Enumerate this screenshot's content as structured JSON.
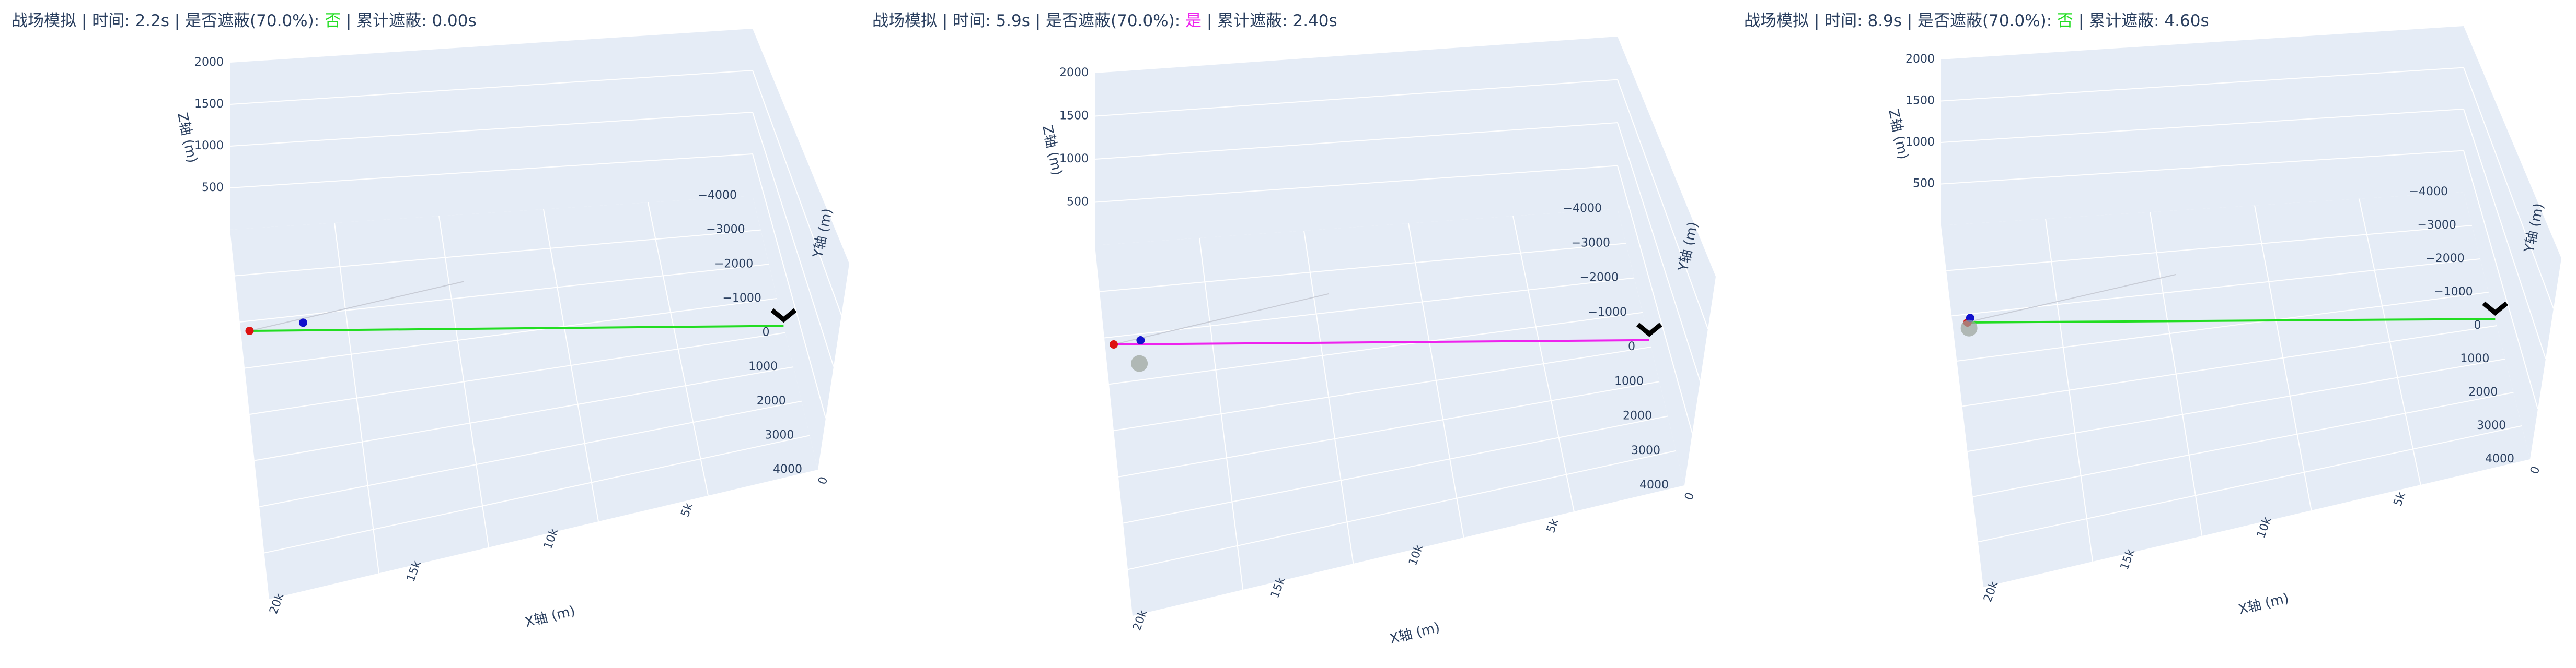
{
  "colors": {
    "pane": "#e5ecf6",
    "grid": "#ffffff",
    "text": "#2a3f5f",
    "not_hidden": "#22dd22",
    "hidden": "#ee22ee",
    "red_point": "#dd1111",
    "blue_point": "#1111cc",
    "cloud": "#9aa39a",
    "target": "#000000"
  },
  "chart_data": [
    {
      "type": "scatter3d",
      "title_prefix": "战场模拟 | 时间: 2.2s | 是否遮蔽(70.0%): ",
      "occluded_label": "否",
      "title_suffix": " | 累计遮蔽: 0.00s",
      "time_s": 2.2,
      "occluded": false,
      "cumulative_occlusion_s": 0.0,
      "axes": {
        "x": {
          "label": "X轴 (m)",
          "ticks": [
            "0",
            "5k",
            "10k",
            "15k",
            "20k"
          ]
        },
        "y": {
          "label": "Y轴 (m)",
          "ticks": [
            "−4000",
            "−3000",
            "−2000",
            "−1000",
            "0",
            "1000",
            "2000",
            "3000",
            "4000"
          ]
        },
        "z": {
          "label": "Z轴 (m)",
          "ticks": [
            "500",
            "1000",
            "1500",
            "2000"
          ]
        }
      },
      "series": [
        {
          "marker": "red",
          "x": 20000,
          "y": 0,
          "z": 1000
        },
        {
          "marker": "blue",
          "x": 18000,
          "y": 0,
          "z": 1000
        },
        {
          "marker": "target",
          "x": 0,
          "y": 200,
          "z": 0
        }
      ],
      "line_of_sight": "not_hidden"
    },
    {
      "type": "scatter3d",
      "title_prefix": "战场模拟 | 时间: 5.9s | 是否遮蔽(70.0%): ",
      "occluded_label": "是",
      "title_suffix": " | 累计遮蔽: 2.40s",
      "time_s": 5.9,
      "occluded": true,
      "cumulative_occlusion_s": 2.4,
      "axes": {
        "x": {
          "label": "X轴 (m)",
          "ticks": [
            "0",
            "5k",
            "10k",
            "15k",
            "20k"
          ]
        },
        "y": {
          "label": "Y轴 (m)",
          "ticks": [
            "−4000",
            "−3000",
            "−2000",
            "−1000",
            "0",
            "1000",
            "2000",
            "3000",
            "4000"
          ]
        },
        "z": {
          "label": "Z轴 (m)",
          "ticks": [
            "500",
            "1000",
            "1500",
            "2000"
          ]
        }
      },
      "series": [
        {
          "marker": "red",
          "x": 20000,
          "y": 0,
          "z": 1000
        },
        {
          "marker": "blue",
          "x": 19000,
          "y": 0,
          "z": 1000
        },
        {
          "marker": "cloud",
          "x": 19200,
          "y": 0,
          "z": 800
        },
        {
          "marker": "target",
          "x": 0,
          "y": 200,
          "z": 0
        }
      ],
      "line_of_sight": "hidden"
    },
    {
      "type": "scatter3d",
      "title_prefix": "战场模拟 | 时间: 8.9s | 是否遮蔽(70.0%): ",
      "occluded_label": "否",
      "title_suffix": " | 累计遮蔽: 4.60s",
      "time_s": 8.9,
      "occluded": false,
      "cumulative_occlusion_s": 4.6,
      "axes": {
        "x": {
          "label": "X轴 (m)",
          "ticks": [
            "0",
            "5k",
            "10k",
            "15k",
            "20k"
          ]
        },
        "y": {
          "label": "Y轴 (m)",
          "ticks": [
            "−4000",
            "−3000",
            "−2000",
            "−1000",
            "0",
            "1000",
            "2000",
            "3000",
            "4000"
          ]
        },
        "z": {
          "label": "Z轴 (m)",
          "ticks": [
            "500",
            "1000",
            "1500",
            "2000"
          ]
        }
      },
      "series": [
        {
          "marker": "red",
          "x": 19800,
          "y": 0,
          "z": 1000
        },
        {
          "marker": "blue",
          "x": 19700,
          "y": 0,
          "z": 1050
        },
        {
          "marker": "cloud",
          "x": 19900,
          "y": 0,
          "z": 1000
        },
        {
          "marker": "target",
          "x": 0,
          "y": 200,
          "z": 0
        }
      ],
      "line_of_sight": "not_hidden"
    }
  ]
}
